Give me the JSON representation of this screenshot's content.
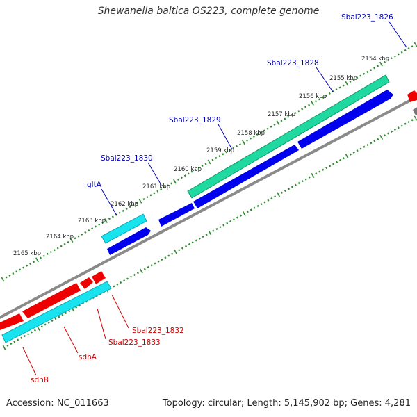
{
  "title": "Shewanella baltica OS223, complete genome",
  "footer": {
    "accession": "Accession: NC_011663",
    "summary": "Topology: circular; Length: 5,145,902 bp; Genes: 4,281"
  },
  "colors": {
    "backbone": "#8a8a8a",
    "tick": "#2e8b2e",
    "forward_gene": "#1fd9a0",
    "cds_forward": "#0000ee",
    "cds_cyan": "#19e3ef",
    "cds_red": "#ee0000",
    "label_blue": "#0000bb",
    "label_red": "#cc0000"
  },
  "kbp_labels": [
    "2154 kbp",
    "2155 kbp",
    "2156 kbp",
    "2157 kbp",
    "2158 kbp",
    "2159 kbp",
    "2160 kbp",
    "2161 kbp",
    "2162 kbp",
    "2163 kbp",
    "2164 kbp",
    "2165 kbp"
  ],
  "gene_labels_top": [
    "Sbal223_1826",
    "Sbal223_1828",
    "Sbal223_1829",
    "Sbal223_1830",
    "gltA"
  ],
  "gene_labels_bottom": [
    "Sbal223_1832",
    "Sbal223_1833",
    "sdhA",
    "sdhB"
  ]
}
